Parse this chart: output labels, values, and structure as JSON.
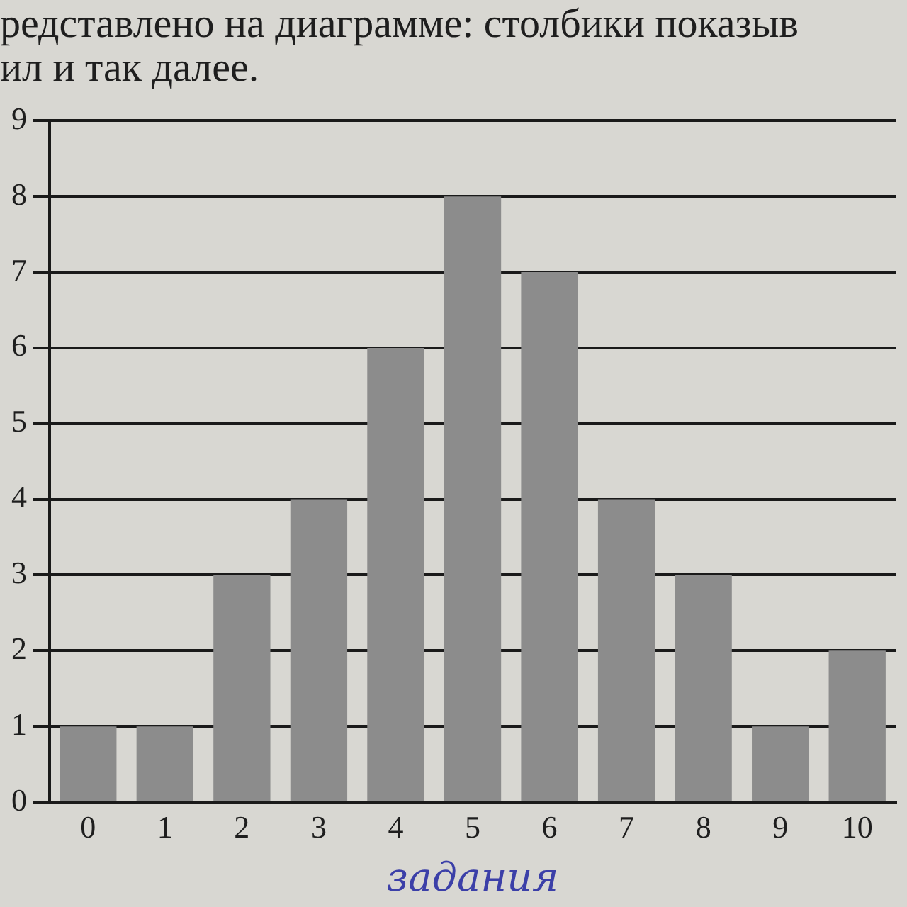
{
  "chart_data": {
    "type": "bar",
    "annotations": [
      "редставлено на диаграмме: столбики показыв",
      "ил и так далее."
    ],
    "xlabel": "задания",
    "categories": [
      "0",
      "1",
      "2",
      "3",
      "4",
      "5",
      "6",
      "7",
      "8",
      "9",
      "10"
    ],
    "values": [
      1,
      1,
      3,
      4,
      6,
      8,
      7,
      4,
      3,
      1,
      2
    ],
    "color": "#8c8c8c",
    "ylim": [
      0,
      9
    ],
    "yticks": [
      0,
      1,
      2,
      3,
      4,
      5,
      6,
      7,
      8,
      9
    ],
    "grid": "y",
    "legend": false
  }
}
